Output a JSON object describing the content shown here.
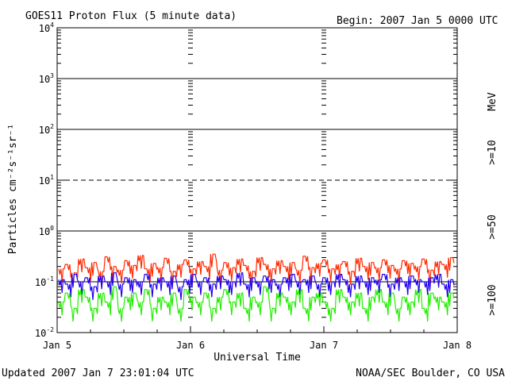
{
  "header": {
    "title": "GOES11 Proton Flux (5 minute data)",
    "begin": "Begin: 2007 Jan 5 0000 UTC"
  },
  "footer": {
    "updated": "Updated 2007 Jan  7 23:01:04 UTC",
    "credit": "NOAA/SEC Boulder, CO USA"
  },
  "chart_data": {
    "type": "line",
    "title": "GOES11 Proton Flux (5 minute data)",
    "xlabel": "Universal Time",
    "ylabel": "Particles cm⁻²s⁻¹sr⁻¹",
    "yscale": "log",
    "ylim": [
      0.01,
      10000
    ],
    "xlim": [
      "2007-01-05 00:00",
      "2007-01-08 00:00"
    ],
    "x_tick_labels": [
      "Jan 5",
      "Jan 6",
      "Jan 7",
      "Jan 8"
    ],
    "y_tick_labels": [
      {
        "base": "10",
        "exp": "4"
      },
      {
        "base": "10",
        "exp": "3"
      },
      {
        "base": "10",
        "exp": "2"
      },
      {
        "base": "10",
        "exp": "1"
      },
      {
        "base": "10",
        "exp": "0"
      },
      {
        "base": "10",
        "exp": "-1"
      },
      {
        "base": "10",
        "exp": "-2"
      }
    ],
    "grid": "horizontal lines at decades; dashed at 10^1",
    "legend_position": "right, vertical",
    "unit_label": "MeV",
    "series": [
      {
        "name": ">=10",
        "color": "#ff2a00",
        "values": [
          0.18,
          0.22,
          0.15,
          0.28,
          0.19,
          0.24,
          0.16,
          0.31,
          0.2,
          0.17,
          0.26,
          0.21,
          0.33,
          0.18,
          0.23,
          0.19,
          0.29,
          0.16,
          0.22,
          0.27,
          0.18,
          0.25,
          0.2,
          0.35,
          0.17,
          0.24,
          0.19,
          0.28,
          0.21,
          0.16,
          0.3,
          0.22,
          0.18,
          0.26,
          0.2,
          0.24,
          0.17,
          0.32,
          0.19,
          0.23,
          0.27,
          0.18,
          0.22,
          0.25,
          0.16,
          0.29,
          0.2,
          0.24,
          0.19,
          0.27,
          0.21,
          0.18,
          0.26,
          0.23,
          0.2,
          0.28,
          0.17,
          0.25,
          0.22,
          0.3
        ]
      },
      {
        "name": ">=50",
        "color": "#2200ee",
        "values": [
          0.11,
          0.09,
          0.14,
          0.1,
          0.12,
          0.08,
          0.13,
          0.1,
          0.15,
          0.09,
          0.12,
          0.11,
          0.1,
          0.14,
          0.09,
          0.12,
          0.1,
          0.13,
          0.08,
          0.11,
          0.14,
          0.1,
          0.12,
          0.09,
          0.13,
          0.11,
          0.1,
          0.15,
          0.09,
          0.12,
          0.1,
          0.13,
          0.11,
          0.09,
          0.12,
          0.14,
          0.1,
          0.11,
          0.13,
          0.09,
          0.12,
          0.1,
          0.14,
          0.11,
          0.09,
          0.13,
          0.1,
          0.12,
          0.11,
          0.14,
          0.09,
          0.12,
          0.1,
          0.13,
          0.11,
          0.1,
          0.12,
          0.14,
          0.09,
          0.11
        ]
      },
      {
        "name": ">=100",
        "color": "#22ee00",
        "values": [
          0.04,
          0.06,
          0.03,
          0.07,
          0.05,
          0.03,
          0.06,
          0.04,
          0.08,
          0.03,
          0.05,
          0.06,
          0.04,
          0.07,
          0.03,
          0.05,
          0.04,
          0.06,
          0.03,
          0.07,
          0.05,
          0.04,
          0.06,
          0.03,
          0.05,
          0.07,
          0.04,
          0.06,
          0.03,
          0.05,
          0.04,
          0.08,
          0.03,
          0.06,
          0.05,
          0.04,
          0.07,
          0.03,
          0.05,
          0.06,
          0.04,
          0.03,
          0.07,
          0.05,
          0.04,
          0.06,
          0.03,
          0.05,
          0.07,
          0.04,
          0.06,
          0.03,
          0.05,
          0.04,
          0.07,
          0.03,
          0.06,
          0.05,
          0.04,
          0.06
        ]
      }
    ]
  }
}
